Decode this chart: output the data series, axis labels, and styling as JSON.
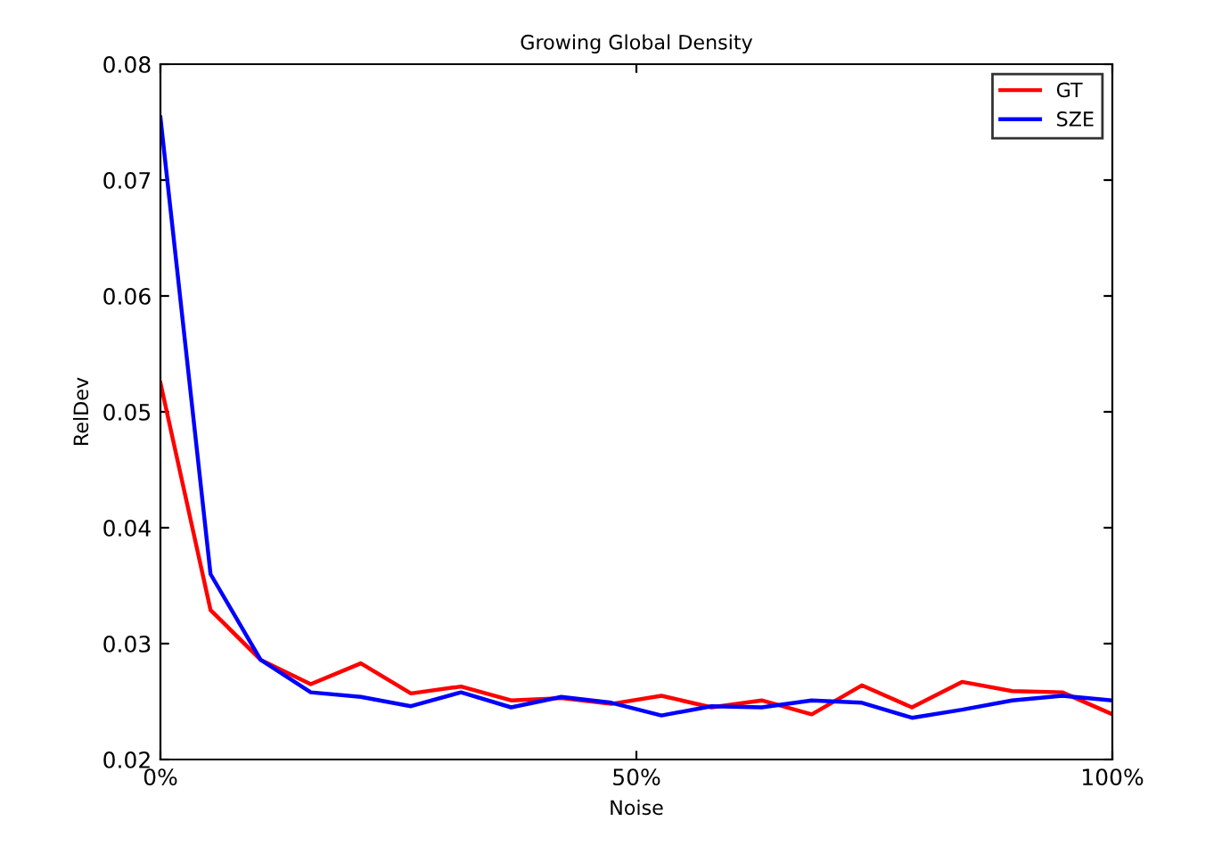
{
  "chart_data": {
    "type": "line",
    "title": "Growing Global Density",
    "xlabel": "Noise",
    "ylabel": "RelDev",
    "x": [
      0,
      5.263,
      10.526,
      15.789,
      21.053,
      26.316,
      31.579,
      36.842,
      42.105,
      47.368,
      52.632,
      57.895,
      63.158,
      68.421,
      73.684,
      78.947,
      84.211,
      89.474,
      94.737,
      100
    ],
    "series": [
      {
        "name": "GT",
        "color": "#ff0000",
        "values": [
          0.0525,
          0.0329,
          0.0286,
          0.0265,
          0.0283,
          0.0257,
          0.0263,
          0.0251,
          0.0253,
          0.0248,
          0.0255,
          0.0245,
          0.0251,
          0.0239,
          0.0264,
          0.0245,
          0.0267,
          0.0259,
          0.0258,
          0.0239
        ]
      },
      {
        "name": "SZE",
        "color": "#0000ff",
        "values": [
          0.0754,
          0.036,
          0.0286,
          0.0258,
          0.0254,
          0.0246,
          0.0258,
          0.0245,
          0.0254,
          0.0249,
          0.0238,
          0.0246,
          0.0245,
          0.0251,
          0.0249,
          0.0236,
          0.0243,
          0.0251,
          0.0255,
          0.0251
        ]
      }
    ],
    "xlim": [
      0,
      100
    ],
    "xticks": [
      {
        "value": 0,
        "label": "0%"
      },
      {
        "value": 50,
        "label": "50%"
      },
      {
        "value": 100,
        "label": "100%"
      }
    ],
    "ylim": [
      0.02,
      0.08
    ],
    "yticks": [
      0.02,
      0.03,
      0.04,
      0.05,
      0.06,
      0.07,
      0.08
    ],
    "grid": false,
    "legend": "top right",
    "marker": "none",
    "line_style": "solid"
  }
}
